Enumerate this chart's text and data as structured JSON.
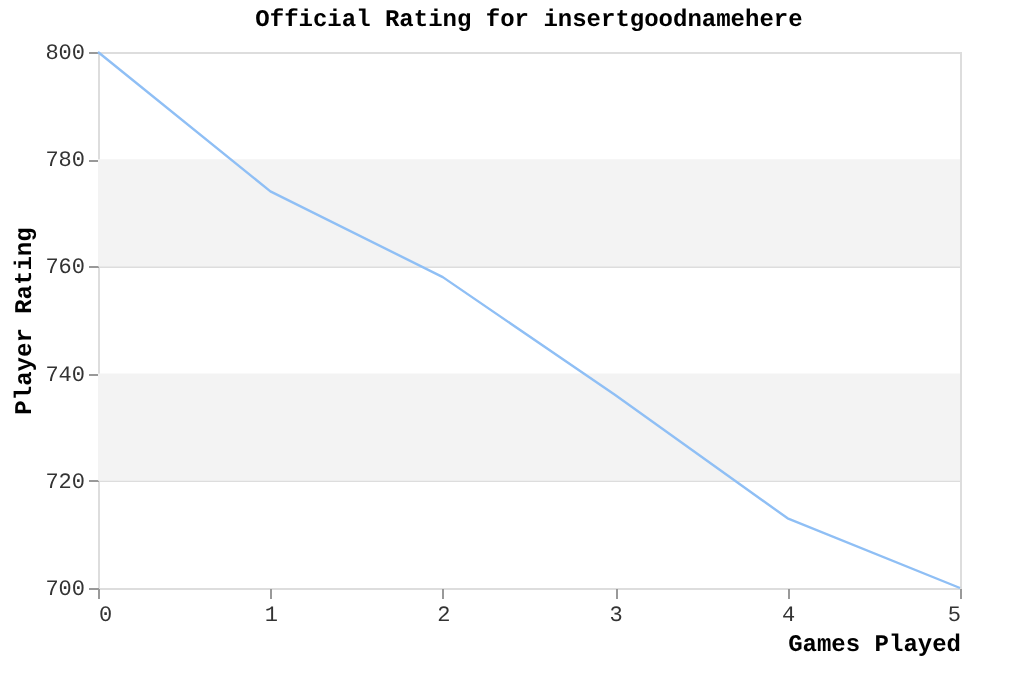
{
  "chart_data": {
    "type": "line",
    "title": "Official Rating for insertgoodnamehere",
    "xlabel": "Games Played",
    "ylabel": "Player Rating",
    "x": [
      0,
      1,
      2,
      3,
      4,
      5
    ],
    "series": [
      {
        "color": "#8fbff5",
        "values": [
          800,
          774,
          758,
          736,
          713,
          700
        ]
      }
    ],
    "xlim": [
      0,
      5
    ],
    "xticks": [
      0,
      1,
      2,
      3,
      4,
      5
    ],
    "ylim": [
      700,
      800
    ],
    "yticks": [
      700,
      720,
      740,
      760,
      780,
      800
    ],
    "bands": [
      {
        "axis": "y",
        "from": 720,
        "to": 740,
        "color": "#f3f3f3"
      },
      {
        "axis": "y",
        "from": 760,
        "to": 780,
        "color": "#f3f3f3"
      }
    ],
    "grid": "y",
    "marker": "none",
    "line_style": "solid"
  }
}
